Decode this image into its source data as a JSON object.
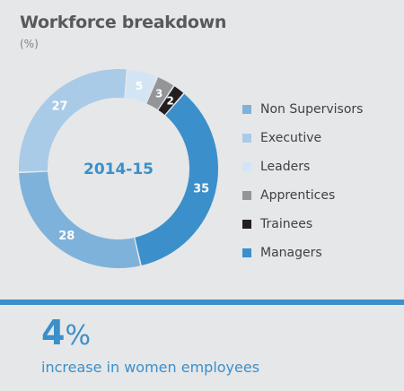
{
  "title": "Workforce breakdown",
  "subtitle": "(%)",
  "chart_data": {
    "type": "pie",
    "title": "Workforce breakdown",
    "subtitle": "(%)",
    "center_label": "2014-15",
    "legend_position": "right",
    "slices": [
      {
        "label": "Non Supervisors",
        "value": 28,
        "color": "#7fb2da"
      },
      {
        "label": "Executive",
        "value": 27,
        "color": "#a9cbe8"
      },
      {
        "label": "Leaders",
        "value": 5,
        "color": "#d3e5f4"
      },
      {
        "label": "Apprentices",
        "value": 3,
        "color": "#939598"
      },
      {
        "label": "Trainees",
        "value": 2,
        "color": "#231f20"
      },
      {
        "label": "Managers",
        "value": 35,
        "color": "#3b8fca"
      }
    ]
  },
  "stat": {
    "value": "4",
    "unit": "%",
    "caption": "increase in women employees"
  },
  "colors": {
    "accent": "#3b8fca",
    "background": "#e6e7e8",
    "title": "#58595b"
  }
}
